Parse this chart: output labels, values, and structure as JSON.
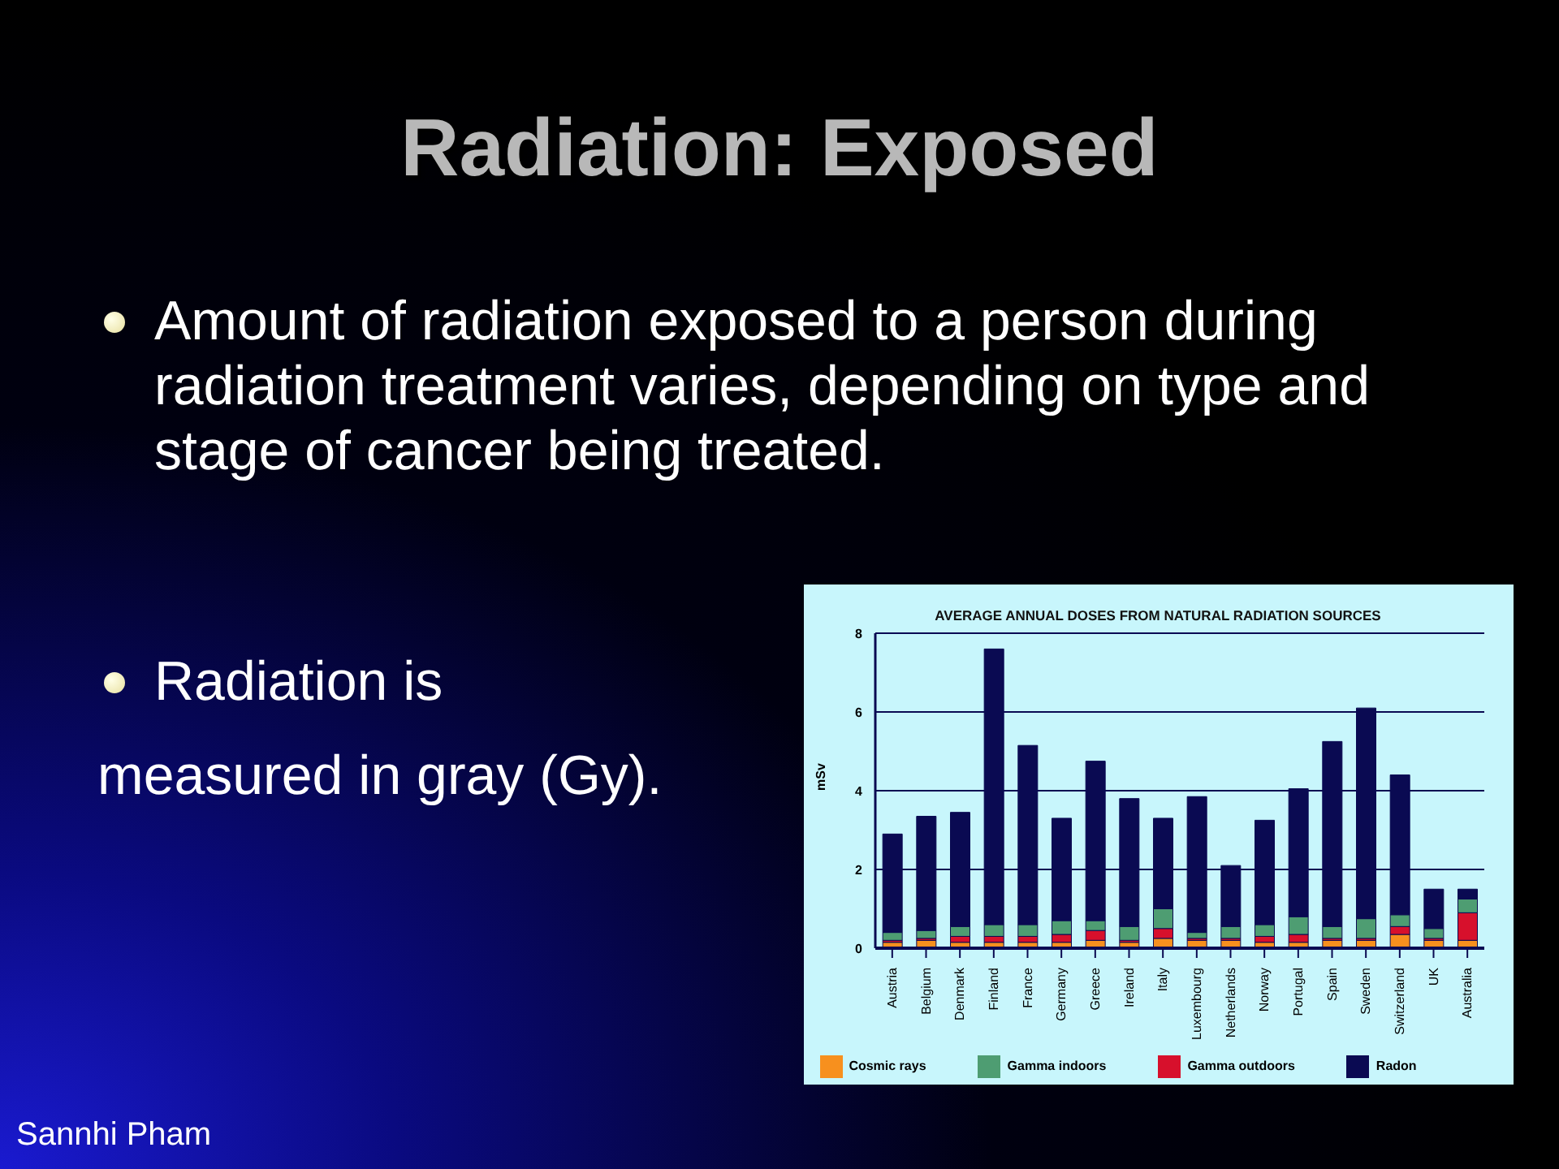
{
  "chart_data": {
    "type": "bar",
    "title": "Radiation: Exposed",
    "subtitle": "AVERAGE ANNUAL DOSES FROM NATURAL RADIATION SOURCES",
    "ylabel": "mSv",
    "annotations": [
      "Amount of radiation exposed to a person during radiation treatment varies, depending on type and stage of cancer being treated.",
      "Radiation is",
      "measured in gray (Gy).",
      "Sannhi Pham"
    ],
    "categories": [
      "Austria",
      "Belgium",
      "Denmark",
      "Finland",
      "France",
      "Germany",
      "Greece",
      "Ireland",
      "Italy",
      "Luxembourg",
      "Netherlands",
      "Norway",
      "Portugal",
      "Spain",
      "Sweden",
      "Switzerland",
      "UK",
      "Australia"
    ],
    "series": [
      {
        "name": "Cosmic rays",
        "color": "#f7901e",
        "values": [
          0.15,
          0.2,
          0.15,
          0.15,
          0.15,
          0.15,
          0.2,
          0.15,
          0.25,
          0.2,
          0.2,
          0.15,
          0.15,
          0.2,
          0.2,
          0.35,
          0.2,
          0.2
        ]
      },
      {
        "name": "Gamma outdoors",
        "color": "#d7102c",
        "values": [
          0.05,
          0.05,
          0.15,
          0.15,
          0.15,
          0.2,
          0.25,
          0.05,
          0.25,
          0.05,
          0.05,
          0.15,
          0.2,
          0.05,
          0.05,
          0.2,
          0.05,
          0.7
        ]
      },
      {
        "name": "Gamma indoors",
        "color": "#4e9d72",
        "values": [
          0.2,
          0.2,
          0.25,
          0.3,
          0.3,
          0.35,
          0.25,
          0.35,
          0.5,
          0.15,
          0.3,
          0.3,
          0.45,
          0.3,
          0.5,
          0.3,
          0.25,
          0.35
        ]
      },
      {
        "name": "Radon",
        "color": "#0a0a52",
        "values": [
          2.5,
          2.9,
          2.9,
          7.0,
          4.55,
          2.6,
          4.05,
          3.25,
          2.3,
          3.45,
          1.55,
          2.65,
          3.25,
          4.7,
          5.35,
          3.55,
          1.0,
          0.25
        ]
      }
    ],
    "stacked": true,
    "ylim": [
      0,
      8
    ],
    "yticks": [
      0,
      2,
      4,
      6,
      8
    ],
    "grid": "y",
    "legend": "bottom"
  }
}
